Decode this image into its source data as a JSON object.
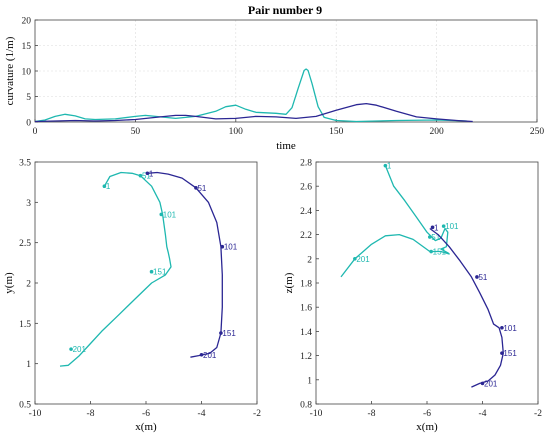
{
  "colors": {
    "series1": "#1fb8b0",
    "series2": "#2b2693"
  },
  "chart_data": [
    {
      "type": "line",
      "title": "Pair number 9",
      "xlabel": "time",
      "ylabel": "curvature (1/m)",
      "xlim": [
        0,
        250
      ],
      "ylim": [
        0,
        20
      ],
      "xticks": [
        "0",
        "50",
        "100",
        "150",
        "200",
        "250"
      ],
      "yticks": [
        "0",
        "5",
        "10",
        "15",
        "20"
      ],
      "grid": true,
      "series": [
        {
          "x": [
            0,
            5,
            10,
            15,
            20,
            25,
            30,
            40,
            50,
            55,
            60,
            70,
            80,
            90,
            95,
            100,
            105,
            110,
            120,
            125,
            128,
            131,
            134,
            135,
            136,
            138,
            141,
            144,
            150,
            160,
            180,
            200,
            215
          ],
          "y": [
            0.1,
            0.4,
            1.1,
            1.5,
            1.2,
            0.6,
            0.5,
            0.6,
            1.1,
            1.3,
            1.1,
            0.7,
            1.1,
            2.1,
            3.0,
            3.3,
            2.5,
            1.9,
            1.7,
            1.5,
            2.8,
            6.5,
            10.1,
            10.4,
            10.1,
            7.5,
            3.0,
            0.9,
            0.3,
            0.1,
            0.3,
            0.4,
            0.2
          ]
        },
        {
          "x": [
            0,
            10,
            20,
            30,
            40,
            50,
            60,
            70,
            75,
            80,
            90,
            100,
            110,
            120,
            130,
            140,
            150,
            160,
            165,
            170,
            180,
            190,
            200,
            210,
            218
          ],
          "y": [
            0.1,
            0.2,
            0.3,
            0.2,
            0.3,
            0.5,
            0.9,
            1.3,
            1.3,
            1.1,
            0.6,
            0.7,
            1.1,
            1.0,
            0.7,
            1.1,
            2.3,
            3.4,
            3.6,
            3.3,
            2.1,
            1.0,
            0.6,
            0.3,
            0.1
          ]
        }
      ]
    },
    {
      "type": "line",
      "xlabel": "x(m)",
      "ylabel": "y(m)",
      "xlim": [
        -10,
        -2
      ],
      "ylim": [
        0.5,
        3.5
      ],
      "xticks": [
        "-10",
        "-8",
        "-6",
        "-4",
        "-2"
      ],
      "yticks": [
        "0.5",
        "1",
        "1.5",
        "2",
        "2.5",
        "3",
        "3.5"
      ],
      "grid": false,
      "series": [
        {
          "x": [
            -7.5,
            -7.3,
            -6.9,
            -6.5,
            -6.2,
            -5.8,
            -5.5,
            -5.4,
            -5.3,
            -5.25,
            -5.2,
            -5.15,
            -5.1,
            -5.3,
            -5.8,
            -6.4,
            -7.0,
            -7.6,
            -8.0,
            -8.4,
            -8.8,
            -9.1
          ],
          "y": [
            3.2,
            3.32,
            3.37,
            3.36,
            3.33,
            3.2,
            3.0,
            2.85,
            2.6,
            2.45,
            2.38,
            2.3,
            2.2,
            2.1,
            2.0,
            1.8,
            1.6,
            1.4,
            1.25,
            1.1,
            0.98,
            0.97
          ],
          "markers": [
            {
              "x": -7.5,
              "y": 3.2,
              "label": "1"
            },
            {
              "x": -6.2,
              "y": 3.33,
              "label": "51"
            },
            {
              "x": -5.45,
              "y": 2.85,
              "label": "101"
            },
            {
              "x": -5.8,
              "y": 2.14,
              "label": "151"
            },
            {
              "x": -8.7,
              "y": 1.18,
              "label": "201"
            }
          ]
        },
        {
          "x": [
            -5.95,
            -5.6,
            -5.2,
            -4.7,
            -4.2,
            -3.75,
            -3.45,
            -3.3,
            -3.25,
            -3.25,
            -3.3,
            -3.45,
            -3.7,
            -4.1,
            -4.4
          ],
          "y": [
            3.36,
            3.37,
            3.35,
            3.3,
            3.18,
            3.0,
            2.75,
            2.45,
            2.1,
            1.7,
            1.38,
            1.2,
            1.13,
            1.1,
            1.08
          ],
          "markers": [
            {
              "x": -5.95,
              "y": 3.36,
              "label": "1"
            },
            {
              "x": -4.2,
              "y": 3.18,
              "label": "51"
            },
            {
              "x": -3.25,
              "y": 2.45,
              "label": "101"
            },
            {
              "x": -3.3,
              "y": 1.38,
              "label": "151"
            },
            {
              "x": -4.0,
              "y": 1.11,
              "label": "201"
            }
          ]
        }
      ]
    },
    {
      "type": "line",
      "xlabel": "x(m)",
      "ylabel": "z(m)",
      "xlim": [
        -10,
        -2
      ],
      "ylim": [
        0.8,
        2.8
      ],
      "xticks": [
        "-10",
        "-8",
        "-6",
        "-4",
        "-2"
      ],
      "yticks": [
        "0.8",
        "1",
        "1.2",
        "1.4",
        "1.6",
        "1.8",
        "2",
        "2.2",
        "2.4",
        "2.6",
        "2.8"
      ],
      "grid": false,
      "series": [
        {
          "x": [
            -7.5,
            -7.2,
            -6.8,
            -6.4,
            -6.0,
            -5.7,
            -5.5,
            -5.35,
            -5.25,
            -5.3,
            -5.5,
            -5.25,
            -5.2,
            -5.5,
            -5.9,
            -6.5,
            -7.0,
            -7.5,
            -8.0,
            -8.6,
            -9.1
          ],
          "y": [
            2.77,
            2.6,
            2.48,
            2.35,
            2.22,
            2.15,
            2.17,
            2.25,
            2.22,
            2.1,
            2.08,
            2.05,
            2.04,
            2.06,
            2.06,
            2.16,
            2.2,
            2.19,
            2.12,
            2.0,
            1.85
          ],
          "markers": [
            {
              "x": -7.5,
              "y": 2.77,
              "label": "1"
            },
            {
              "x": -5.9,
              "y": 2.18,
              "label": "51"
            },
            {
              "x": -5.4,
              "y": 2.27,
              "label": "101"
            },
            {
              "x": -5.85,
              "y": 2.06,
              "label": "151"
            },
            {
              "x": -8.6,
              "y": 2.0,
              "label": "201"
            }
          ]
        },
        {
          "x": [
            -5.9,
            -5.6,
            -5.2,
            -4.8,
            -4.4,
            -4.1,
            -3.8,
            -3.6,
            -3.4,
            -3.3,
            -3.25,
            -3.35,
            -3.55,
            -3.8,
            -4.1,
            -4.4
          ],
          "y": [
            2.25,
            2.2,
            2.1,
            1.98,
            1.85,
            1.72,
            1.58,
            1.46,
            1.43,
            1.35,
            1.22,
            1.12,
            1.04,
            0.99,
            0.97,
            0.94
          ],
          "markers": [
            {
              "x": -5.8,
              "y": 2.26,
              "label": "1"
            },
            {
              "x": -4.2,
              "y": 1.85,
              "label": "51"
            },
            {
              "x": -3.3,
              "y": 1.43,
              "label": "101"
            },
            {
              "x": -3.3,
              "y": 1.22,
              "label": "151"
            },
            {
              "x": -4.0,
              "y": 0.97,
              "label": "201"
            }
          ]
        }
      ]
    }
  ]
}
